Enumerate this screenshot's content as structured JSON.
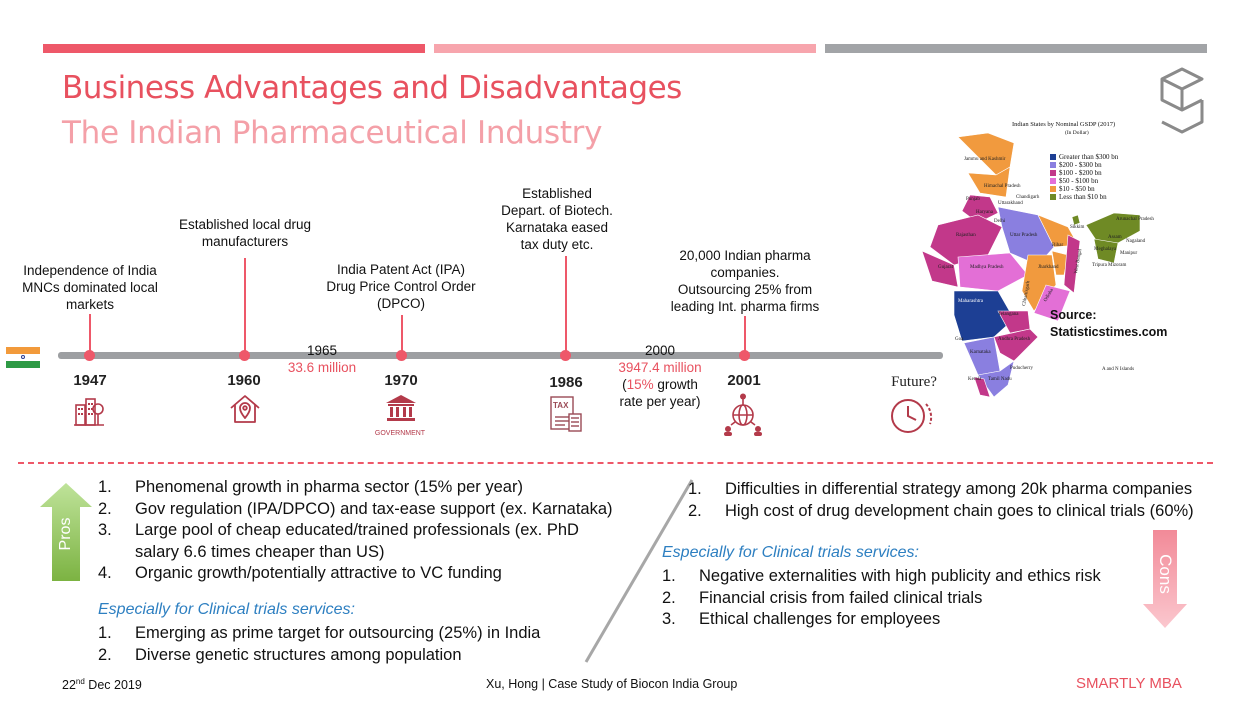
{
  "header": {
    "title": "Business Advantages and Disadvantages",
    "subtitle": "The Indian Pharmaceutical Industry",
    "bar_colors": [
      "#ee5869",
      "#f7a5ad",
      "#a2a4a7"
    ]
  },
  "timeline": {
    "events": [
      {
        "year": "1947",
        "text_lines": [
          "Independence of India",
          "MNCs dominated local",
          "markets"
        ],
        "icon": "city-buildings-icon"
      },
      {
        "year": "1960",
        "text_lines": [
          "Established local drug",
          "manufacturers"
        ],
        "icon": "home-location-icon"
      },
      {
        "year": "1970",
        "text_lines": [
          "India Patent Act (IPA)",
          "Drug Price Control Order",
          "(DPCO)"
        ],
        "icon": "government-building-icon",
        "icon_caption": "GOVERNMENT"
      },
      {
        "year": "1986",
        "text_lines": [
          "Established",
          "Depart. of Biotech.",
          "Karnataka eased",
          "tax duty etc."
        ],
        "icon": "tax-document-icon",
        "icon_caption": "TAX"
      },
      {
        "year": "2001",
        "text_lines": [
          "20,000 Indian pharma",
          "companies.",
          "Outsourcing 25% from",
          "leading Int. pharma firms"
        ],
        "icon": "global-network-icon"
      },
      {
        "year": "Future?",
        "icon": "clock-icon"
      }
    ],
    "notes": [
      {
        "year": "1965",
        "value": "33.6 million"
      },
      {
        "year": "2000",
        "value": "3947.4 million",
        "growth_prefix": "(",
        "growth_pct": "15%",
        "growth_suffix": " growth",
        "growth_line2": "rate per year)"
      }
    ]
  },
  "map": {
    "title": "Indian States by Nominal GSDP (2017)",
    "subtitle": "(In Dollar)",
    "legend": [
      {
        "label": "Greater than $300 bn",
        "color": "#1d3f94"
      },
      {
        "label": "$200 - $300 bn",
        "color": "#8a7fe0"
      },
      {
        "label": "$100 - $200 bn",
        "color": "#c2388a"
      },
      {
        "label": "$50 - $100 bn",
        "color": "#e36fd6"
      },
      {
        "label": "$10 - $50 bn",
        "color": "#f19a3e"
      },
      {
        "label": "Less than $10 bn",
        "color": "#6f8a25"
      }
    ],
    "source_label": "Source:",
    "source_site": "Statisticstimes.com",
    "state_labels": [
      "Jammu and Kashmir",
      "Himachal Pradesh",
      "Punjab",
      "Uttarakhand",
      "Chandigarh",
      "Haryana",
      "Delhi",
      "Rajasthan",
      "Uttar Pradesh",
      "Sikkim",
      "Arunachal Pradesh",
      "Assam",
      "Nagaland",
      "Bihar",
      "Meghalaya",
      "Manipur",
      "Gujarat",
      "Madhya Pradesh",
      "Jharkhand",
      "West Bengal",
      "Tripura",
      "Mizoram",
      "Chhattisgarh",
      "Odisha",
      "Maharashtra",
      "Telangana",
      "Goa",
      "Andhra Pradesh",
      "Karnataka",
      "Puducherry",
      "Kerala",
      "Tamil Nadu",
      "A and N Islands"
    ]
  },
  "pros": {
    "label": "Pros",
    "items": [
      {
        "num": "1.",
        "text": "Phenomenal growth in pharma sector (15% per year)"
      },
      {
        "num": "2.",
        "text": "Gov regulation (IPA/DPCO) and tax-ease support (ex. Karnataka)"
      },
      {
        "num": "3.",
        "text": "Large pool of cheap educated/trained professionals (ex. PhD",
        "text2": "salary 6.6 times cheaper than US)"
      },
      {
        "num": "4.",
        "text": "Organic growth/potentially attractive to VC funding"
      }
    ],
    "special_heading": "Especially for Clinical trials services:",
    "special_items": [
      {
        "num": "1.",
        "text": "Emerging as prime target for outsourcing (25%) in India"
      },
      {
        "num": "2.",
        "text": "Diverse genetic structures among population"
      }
    ]
  },
  "cons": {
    "label": "Cons",
    "items": [
      {
        "num": "1.",
        "text": "Difficulties in differential strategy among 20k pharma companies"
      },
      {
        "num": "2.",
        "text": "High cost of drug development chain goes to clinical trials (60%)"
      }
    ],
    "special_heading": "Especially for Clinical trials services:",
    "special_items": [
      {
        "num": "1.",
        "text": "Negative externalities with high publicity and ethics risk"
      },
      {
        "num": "2.",
        "text": "Financial crisis from failed clinical trials"
      },
      {
        "num": "3.",
        "text": "Ethical challenges for employees"
      }
    ]
  },
  "footer": {
    "date_day": "22",
    "date_sup": "nd",
    "date_rest": " Dec 2019",
    "center": "Xu, Hong | Case Study of Biocon India Group",
    "brand": "SMARTLY MBA"
  }
}
